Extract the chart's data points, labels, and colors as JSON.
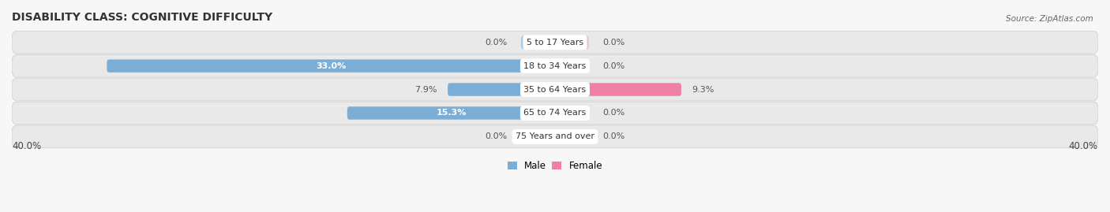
{
  "title": "DISABILITY CLASS: COGNITIVE DIFFICULTY",
  "source": "Source: ZipAtlas.com",
  "categories": [
    "5 to 17 Years",
    "18 to 34 Years",
    "35 to 64 Years",
    "65 to 74 Years",
    "75 Years and over"
  ],
  "male_values": [
    0.0,
    33.0,
    7.9,
    15.3,
    0.0
  ],
  "female_values": [
    0.0,
    0.0,
    9.3,
    0.0,
    0.0
  ],
  "male_color": "#7aaed6",
  "female_color": "#ef7fa4",
  "male_color_light": "#aecce8",
  "female_color_light": "#f5bdd0",
  "max_value": 40.0,
  "bar_height": 0.55,
  "row_bg_color": "#e9e9e9",
  "row_border_color": "#d0d0d0",
  "fig_bg_color": "#f7f7f7",
  "title_fontsize": 10,
  "label_fontsize": 8,
  "cat_fontsize": 8,
  "axis_label_fontsize": 8.5,
  "source_fontsize": 7.5
}
